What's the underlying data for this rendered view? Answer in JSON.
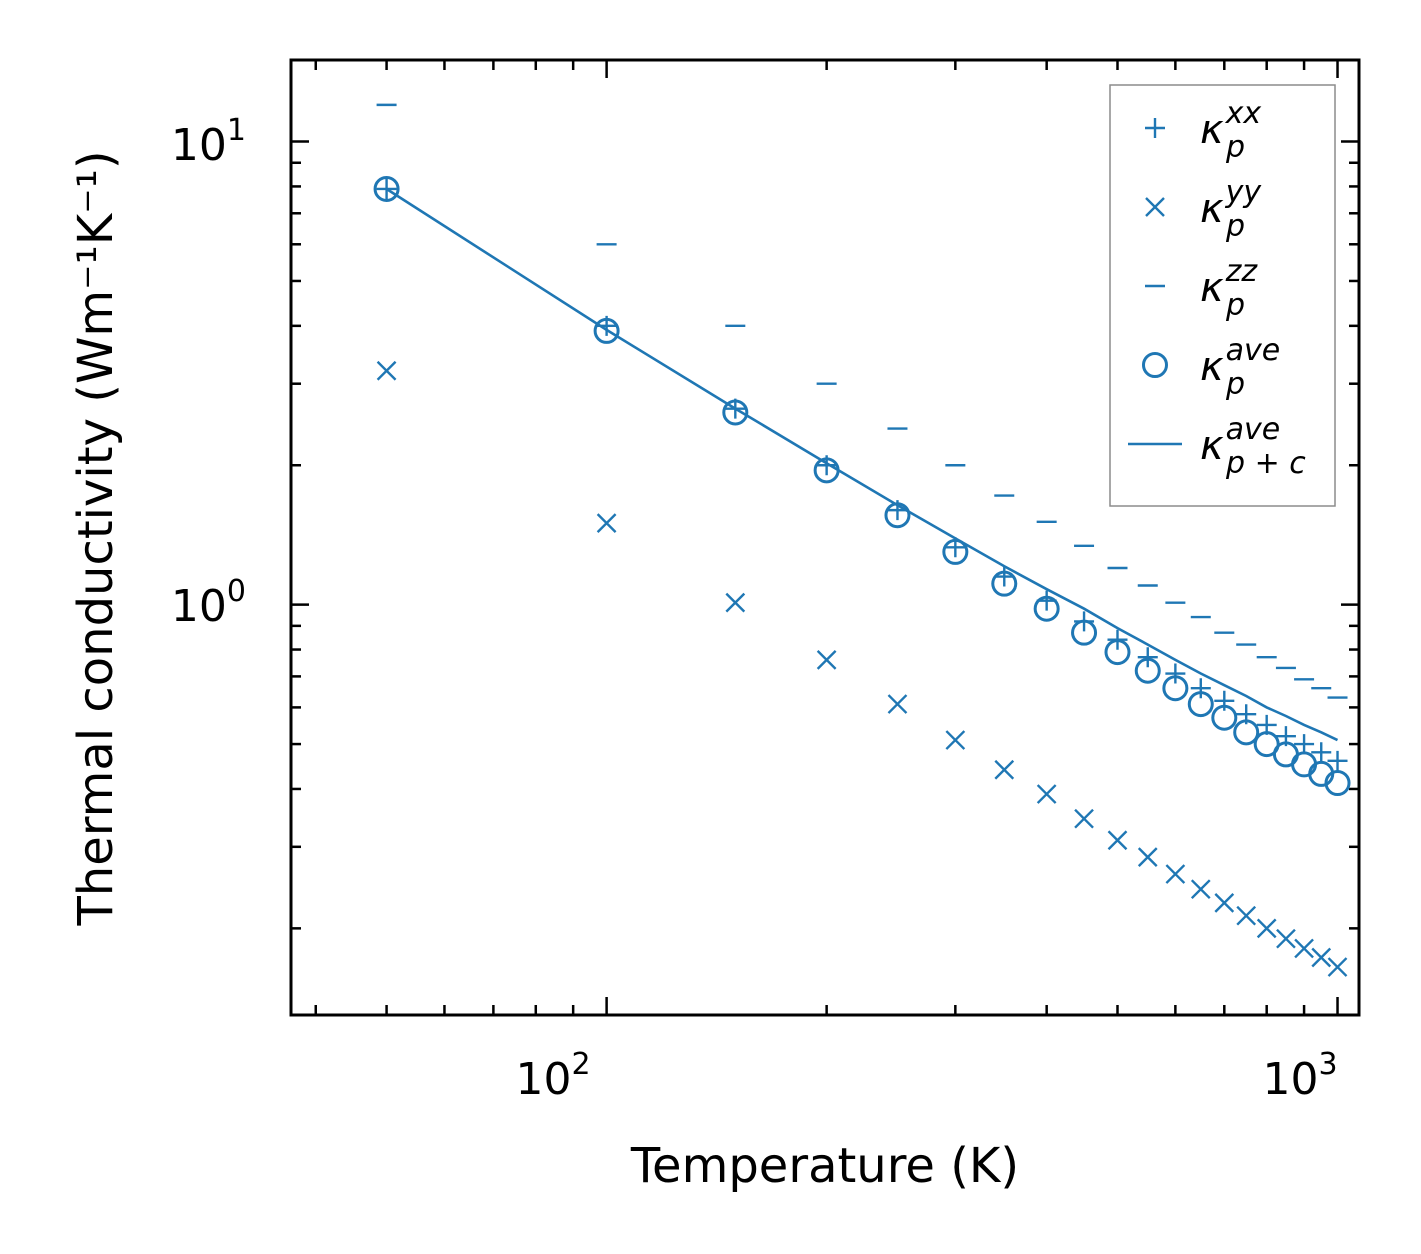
{
  "chart_data": {
    "type": "scatter",
    "xscale": "log",
    "yscale": "log",
    "xlabel": "Temperature (K)",
    "ylabel": "Thermal conductivity (Wm⁻¹K⁻¹)",
    "xlim": [
      37,
      1070
    ],
    "ylim": [
      0.13,
      15
    ],
    "x_ticks": [
      {
        "base": "10",
        "exp": "2",
        "value": 100
      },
      {
        "base": "10",
        "exp": "3",
        "value": 1000
      }
    ],
    "y_ticks": [
      {
        "base": "10",
        "exp": "0",
        "value": 1
      },
      {
        "base": "10",
        "exp": "1",
        "value": 10
      }
    ],
    "color": "#1f77b4",
    "x": [
      50,
      100,
      150,
      200,
      250,
      300,
      350,
      400,
      450,
      500,
      550,
      600,
      650,
      700,
      750,
      800,
      850,
      900,
      950,
      1000
    ],
    "series": [
      {
        "name": "kxx",
        "marker": "plus",
        "label": "κ",
        "sub": "p",
        "sup": "xx",
        "values": [
          7.9,
          4.0,
          2.65,
          2.0,
          1.6,
          1.33,
          1.15,
          1.02,
          0.92,
          0.84,
          0.77,
          0.71,
          0.66,
          0.62,
          0.58,
          0.55,
          0.52,
          0.5,
          0.48,
          0.46
        ]
      },
      {
        "name": "kyy",
        "marker": "x",
        "label": "κ",
        "sub": "p",
        "sup": "yy",
        "values": [
          3.2,
          1.5,
          1.01,
          0.76,
          0.61,
          0.51,
          0.44,
          0.39,
          0.345,
          0.31,
          0.285,
          0.262,
          0.243,
          0.227,
          0.213,
          0.2,
          0.19,
          0.181,
          0.173,
          0.165
        ]
      },
      {
        "name": "kzz",
        "marker": "dash",
        "label": "κ",
        "sub": "p",
        "sup": "zz",
        "values": [
          12.0,
          6.0,
          4.0,
          3.0,
          2.4,
          2.0,
          1.72,
          1.51,
          1.34,
          1.2,
          1.1,
          1.01,
          0.94,
          0.87,
          0.82,
          0.77,
          0.73,
          0.69,
          0.66,
          0.63
        ]
      },
      {
        "name": "kave",
        "marker": "circle",
        "label": "κ",
        "sub": "p",
        "sup": "ave",
        "values": [
          7.9,
          3.9,
          2.6,
          1.95,
          1.56,
          1.3,
          1.11,
          0.98,
          0.87,
          0.79,
          0.72,
          0.66,
          0.61,
          0.57,
          0.53,
          0.5,
          0.475,
          0.452,
          0.431,
          0.412
        ]
      },
      {
        "name": "kave-pc",
        "marker": "line",
        "label": "κ",
        "sub": "p + c",
        "sup": "ave",
        "values": [
          7.9,
          3.92,
          2.65,
          2.02,
          1.64,
          1.39,
          1.21,
          1.08,
          0.98,
          0.89,
          0.82,
          0.76,
          0.71,
          0.67,
          0.635,
          0.6,
          0.575,
          0.55,
          0.53,
          0.51
        ]
      }
    ]
  }
}
